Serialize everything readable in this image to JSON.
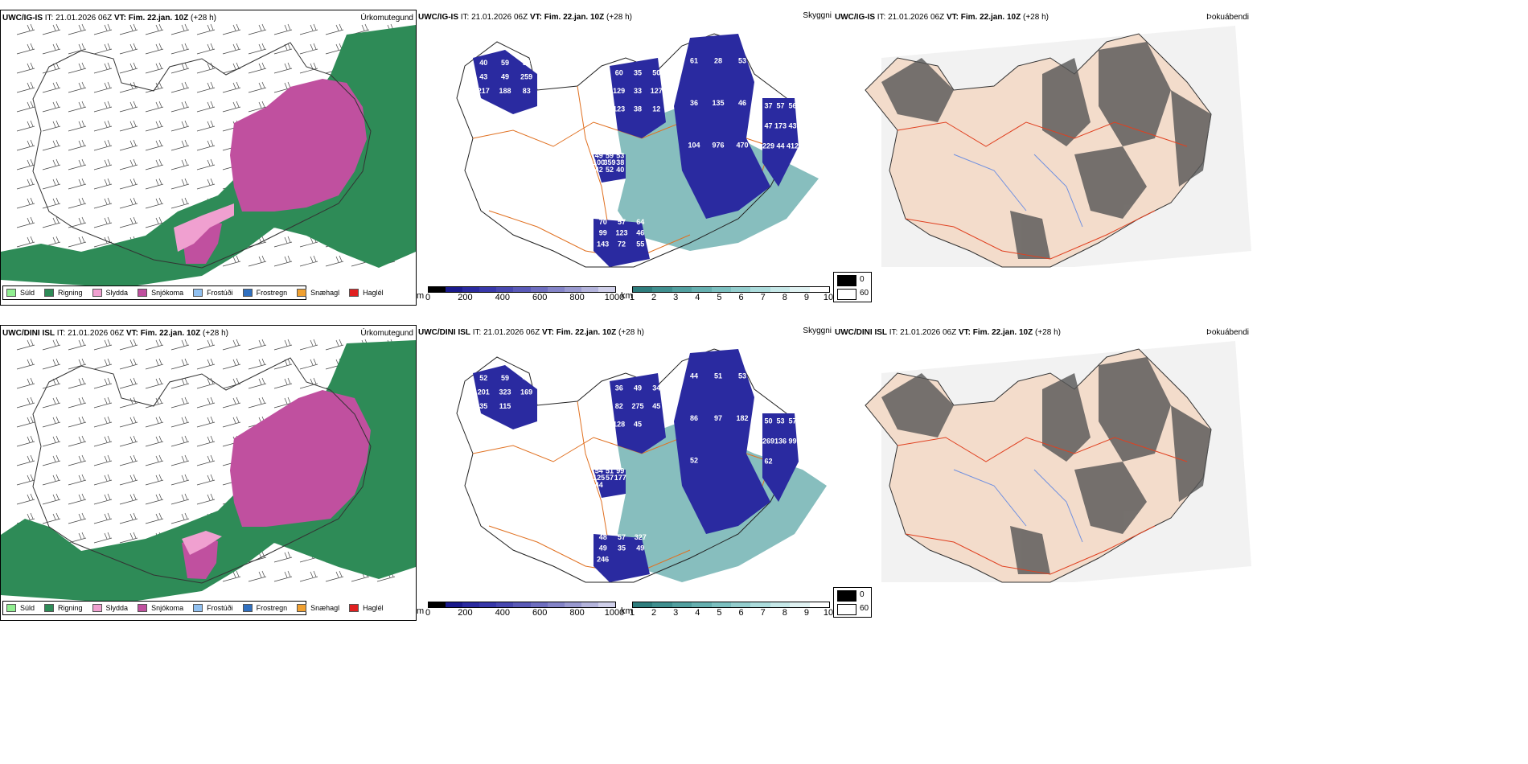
{
  "rows": [
    {
      "model": "UWC/IG-IS",
      "it_label": "IT:",
      "it_value": "21.01.2026 06Z",
      "vt_label": "VT:",
      "vt_value": "Fim. 22.jan. 10Z",
      "lead": "(+28 h)",
      "precip_title": "Úrkomutegund",
      "vis_title": "Skyggni",
      "fog_title": "Þokuábendi",
      "cloud_labels": [
        "40",
        "60",
        "61",
        "37",
        "49",
        "70",
        "59",
        "35",
        "28",
        "57",
        "59",
        "57",
        "54",
        "50",
        "53",
        "56",
        "53",
        "64",
        "43",
        "129",
        "36",
        "47",
        "100",
        "99",
        "49",
        "33",
        "135",
        "173",
        "359",
        "123",
        "259",
        "127",
        "46",
        "43",
        "38",
        "46",
        "217",
        "123",
        "104",
        "229",
        "42",
        "143",
        "188",
        "38",
        "976",
        "44",
        "52",
        "72",
        "83",
        "12",
        "470",
        "412",
        "40",
        "55",
        "10"
      ]
    },
    {
      "model": "UWC/DINI ISL",
      "it_label": "IT:",
      "it_value": "21.01.2026 06Z",
      "vt_label": "VT:",
      "vt_value": "Fim. 22.jan. 10Z",
      "lead": "(+28 h)",
      "precip_title": "Úrkomutegund",
      "vis_title": "Skyggni",
      "fog_title": "Þokuábendi",
      "cloud_labels": [
        "52",
        "36",
        "44",
        "50",
        "54",
        "48",
        "59",
        "49",
        "51",
        "53",
        "51",
        "57",
        "41",
        "34",
        "53",
        "57",
        "99",
        "327",
        "201",
        "82",
        "86",
        "269",
        "125",
        "49",
        "323",
        "275",
        "97",
        "136",
        "57",
        "35",
        "169",
        "45",
        "182",
        "99",
        "177",
        "49",
        "35",
        "128",
        "52",
        "62",
        "44",
        "246",
        "115",
        "45"
      ]
    }
  ],
  "precip_legend": [
    {
      "label": "Súld",
      "color": "#90ee90"
    },
    {
      "label": "Rigning",
      "color": "#2e8b57"
    },
    {
      "label": "Slydda",
      "color": "#f0a0d0"
    },
    {
      "label": "Snjókoma",
      "color": "#c0509f"
    },
    {
      "label": "Frostúði",
      "color": "#90c0f0"
    },
    {
      "label": "Frostregn",
      "color": "#3070c0"
    },
    {
      "label": "Snæhagl",
      "color": "#f0a030"
    },
    {
      "label": "Haglél",
      "color": "#e02020"
    }
  ],
  "cloud_base_bar": {
    "unit": "m",
    "ticks": [
      "0",
      "200",
      "400",
      "600",
      "800",
      "1000"
    ]
  },
  "visibility_bar": {
    "unit": "km",
    "ticks": [
      "1",
      "2",
      "3",
      "4",
      "5",
      "6",
      "7",
      "8",
      "9",
      "10"
    ]
  },
  "fog_legend": {
    "black": "0",
    "white": "60"
  },
  "colors": {
    "rain": "#2e8b57",
    "snow": "#c0509f",
    "sleet": "#f0a0d0",
    "cloud": "#1a1a8c",
    "vis": "#2e8b8b",
    "road": "#e07020",
    "fog_land": "#f3dccb"
  }
}
